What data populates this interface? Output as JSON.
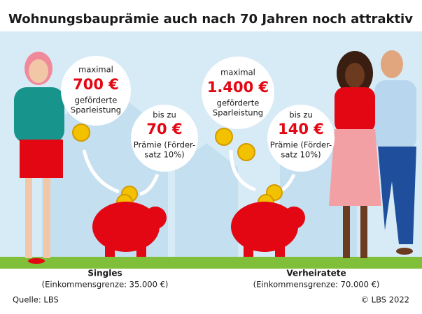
{
  "title": "Wohnungsbauprämie auch nach 70 Jahren noch attraktiv",
  "panels": [
    {
      "max_bubble": {
        "intro": "maximal",
        "amount": "700 €",
        "line1": "geförderte",
        "line2": "Sparleistung"
      },
      "bonus_bubble": {
        "intro": "bis zu",
        "amount": "70 €",
        "line1": "Prämie (Förder-",
        "line2": "satz 10%)"
      },
      "label": "Singles",
      "sublabel": "(Einkommensgrenze: 35.000 €)"
    },
    {
      "max_bubble": {
        "intro": "maximal",
        "amount": "1.400 €",
        "line1": "geförderte",
        "line2": "Sparleistung"
      },
      "bonus_bubble": {
        "intro": "bis zu",
        "amount": "140 €",
        "line1": "Prämie (Förder-",
        "line2": "satz 10%)"
      },
      "label": "Verheiratete",
      "sublabel": "(Einkommensgrenze: 70.000 €)"
    }
  ],
  "source": "Quelle: LBS",
  "copyright": "© LBS 2022"
}
